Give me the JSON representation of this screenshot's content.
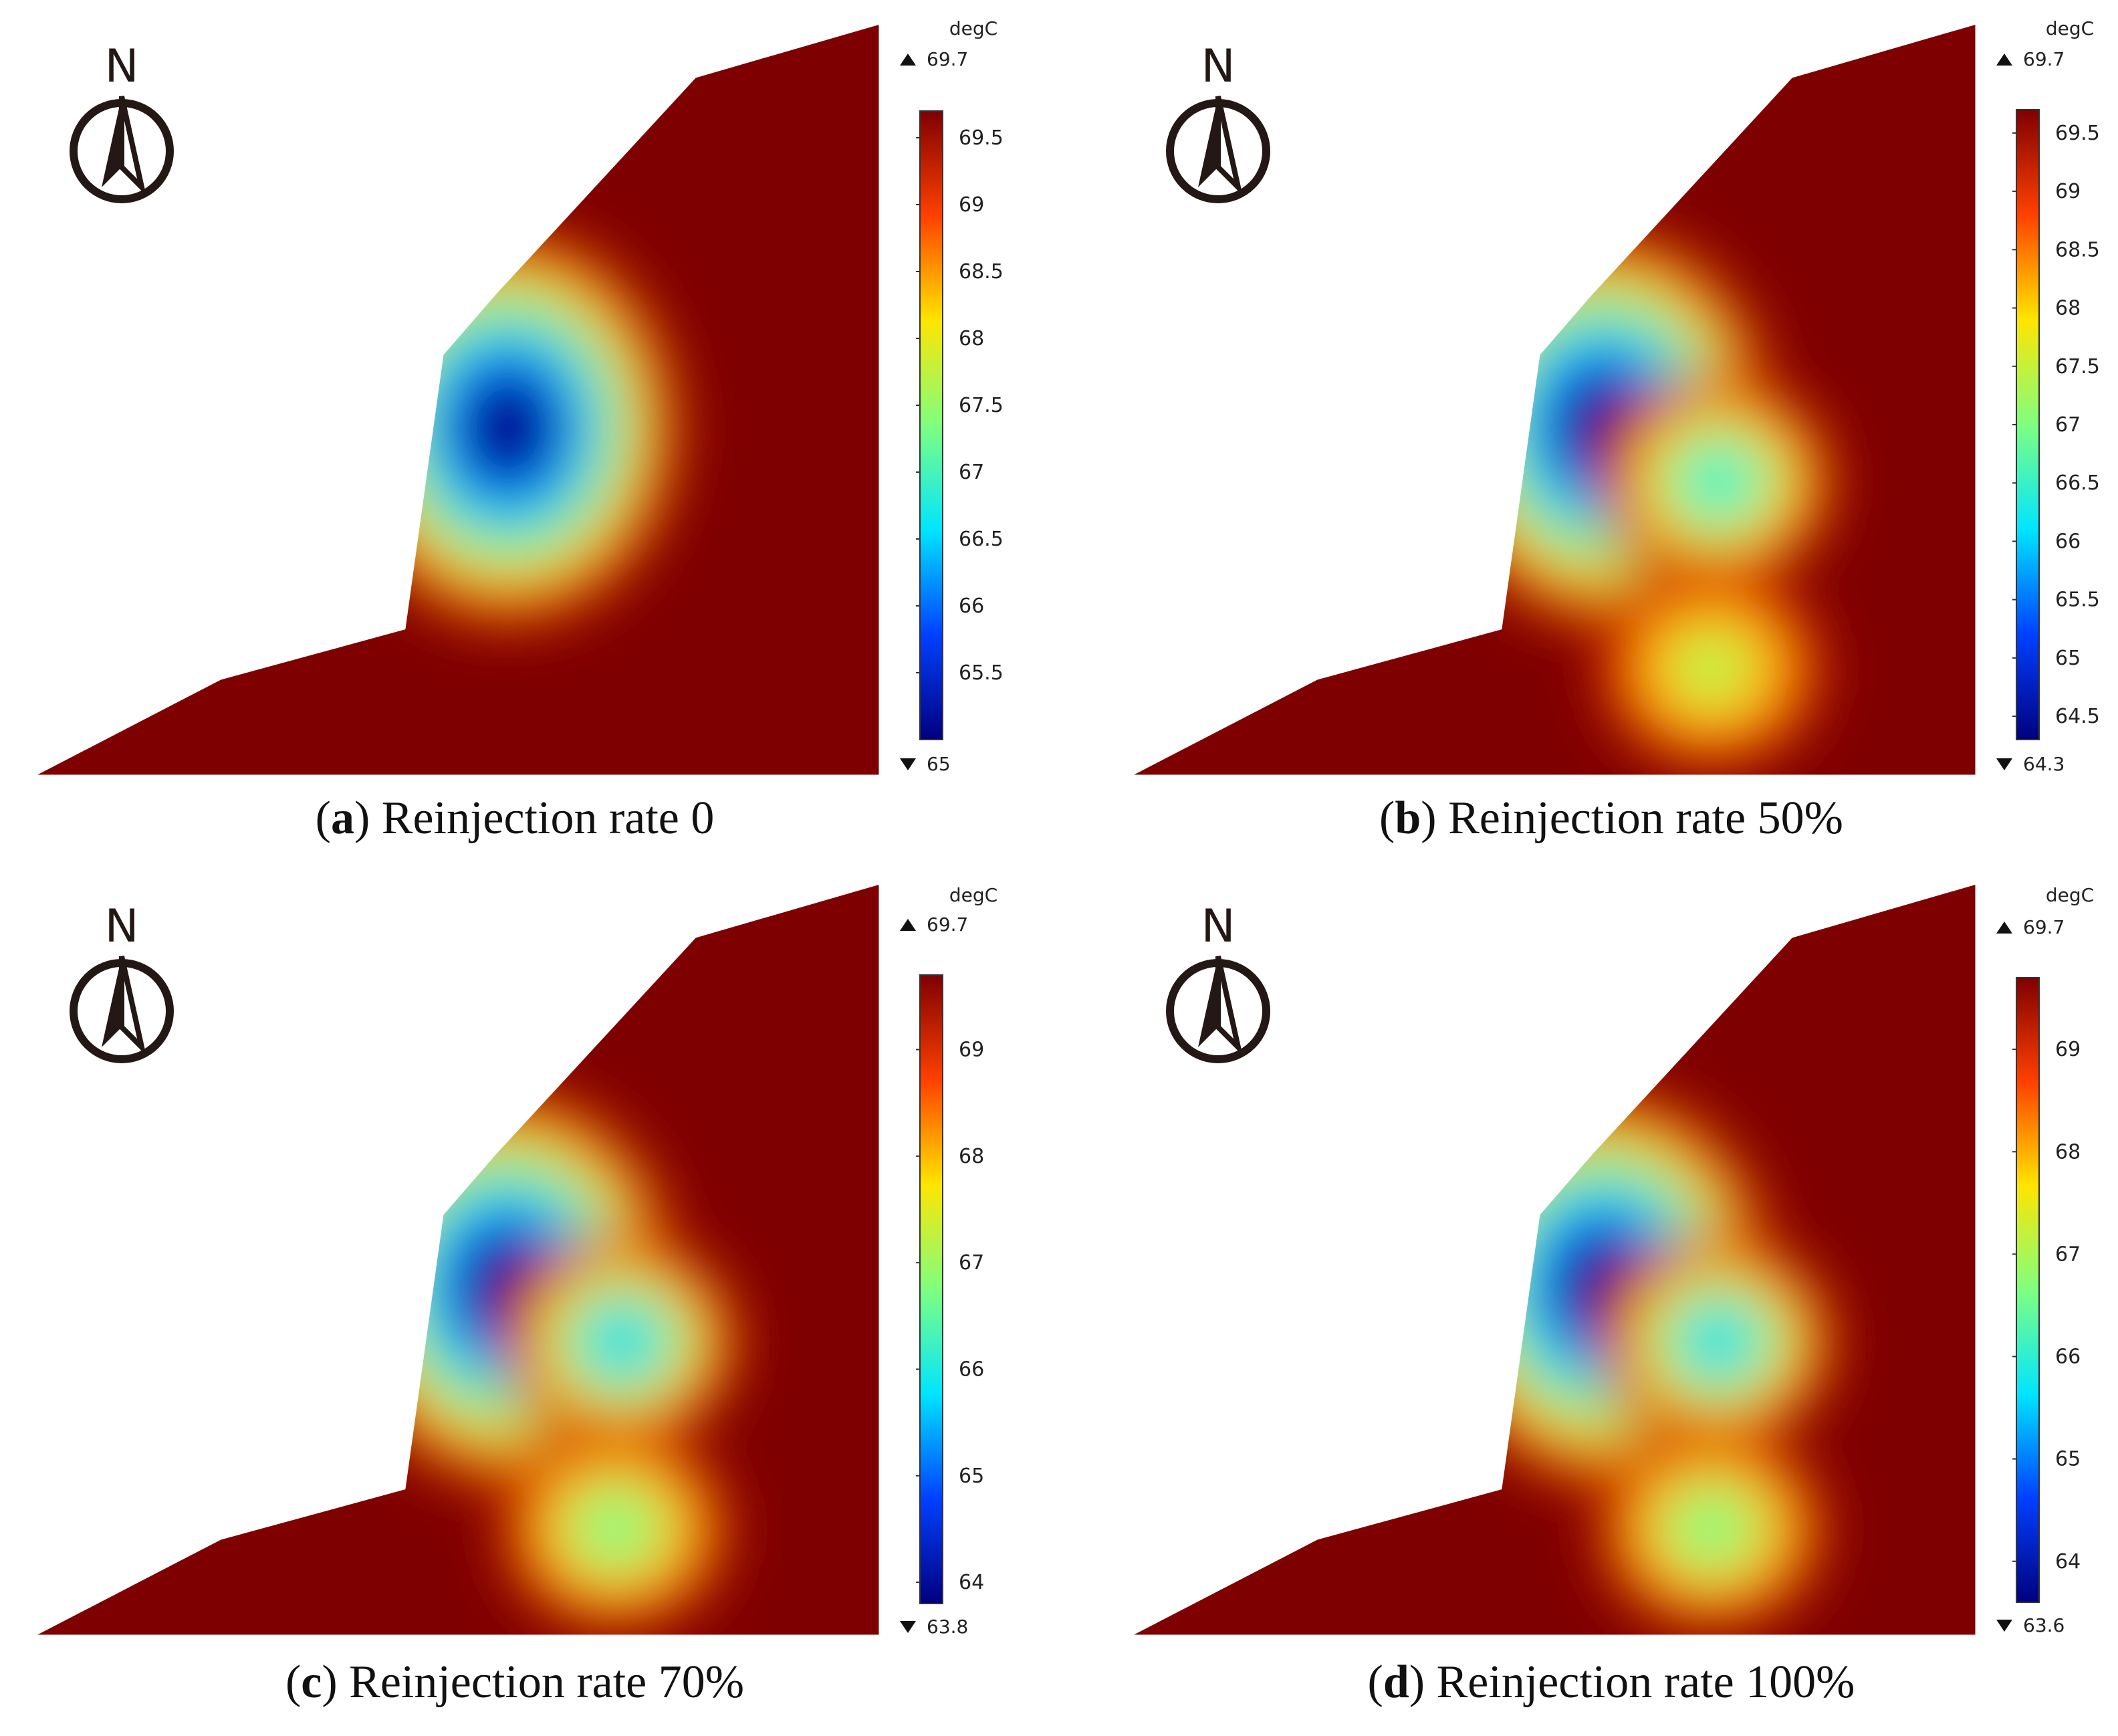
{
  "figure": {
    "panels": [
      {
        "id": "a",
        "letter": "a",
        "caption": "Reinjection rate 0",
        "north_label": "N",
        "unit": "degC",
        "max_label": "69.7",
        "min_label": "65",
        "colorbar": {
          "min": 65,
          "max": 69.7,
          "ticks": [
            "69.5",
            "69",
            "68.5",
            "68",
            "67.5",
            "67",
            "66.5",
            "66",
            "65.5"
          ]
        }
      },
      {
        "id": "b",
        "letter": "b",
        "caption": "Reinjection rate 50%",
        "north_label": "N",
        "unit": "degC",
        "max_label": "69.7",
        "min_label": "64.3",
        "colorbar": {
          "min": 64.3,
          "max": 69.7,
          "ticks": [
            "69.5",
            "69",
            "68.5",
            "68",
            "67.5",
            "67",
            "66.5",
            "66",
            "65.5",
            "65",
            "64.5"
          ]
        }
      },
      {
        "id": "c",
        "letter": "c",
        "caption": "Reinjection rate 70%",
        "north_label": "N",
        "unit": "degC",
        "max_label": "69.7",
        "min_label": "63.8",
        "colorbar": {
          "min": 63.8,
          "max": 69.7,
          "ticks": [
            "69",
            "68",
            "67",
            "66",
            "65",
            "64"
          ]
        }
      },
      {
        "id": "d",
        "letter": "d",
        "caption": "Reinjection rate 100%",
        "north_label": "N",
        "unit": "degC",
        "max_label": "69.7",
        "min_label": "63.6",
        "colorbar": {
          "min": 63.6,
          "max": 69.7,
          "ticks": [
            "69",
            "68",
            "67",
            "66",
            "65",
            "64"
          ]
        }
      }
    ],
    "colormap": [
      "#00007f",
      "#0040ff",
      "#00e5ff",
      "#7fff7f",
      "#ffe500",
      "#ff4000",
      "#7f0000"
    ]
  },
  "chart_data": [
    {
      "type": "heatmap",
      "panel": "a",
      "variable": "degC",
      "range": [
        65,
        69.7
      ],
      "min_value": 65,
      "max_value": 69.7,
      "cold_zones": [
        [
          0.0,
          65.0
        ]
      ],
      "caption": "Reinjection rate 0"
    },
    {
      "type": "heatmap",
      "panel": "b",
      "variable": "degC",
      "range": [
        64.3,
        69.7
      ],
      "min_value": 64.3,
      "max_value": 69.7,
      "cold_zones": [
        [
          0.0,
          64.3
        ],
        [
          1.0,
          66.3
        ],
        [
          2.0,
          67.3
        ]
      ],
      "caption": "Reinjection rate 50%"
    },
    {
      "type": "heatmap",
      "panel": "c",
      "variable": "degC",
      "range": [
        63.8,
        69.7
      ],
      "min_value": 63.8,
      "max_value": 69.7,
      "cold_zones": [
        [
          0.0,
          63.8
        ],
        [
          1.0,
          65.6
        ],
        [
          2.0,
          66.6
        ]
      ],
      "caption": "Reinjection rate 70%"
    },
    {
      "type": "heatmap",
      "panel": "d",
      "variable": "degC",
      "range": [
        63.6,
        69.7
      ],
      "min_value": 63.6,
      "max_value": 69.7,
      "cold_zones": [
        [
          0.0,
          63.6
        ],
        [
          1.0,
          65.5
        ],
        [
          2.0,
          66.5
        ]
      ],
      "caption": "Reinjection rate 100%"
    }
  ]
}
